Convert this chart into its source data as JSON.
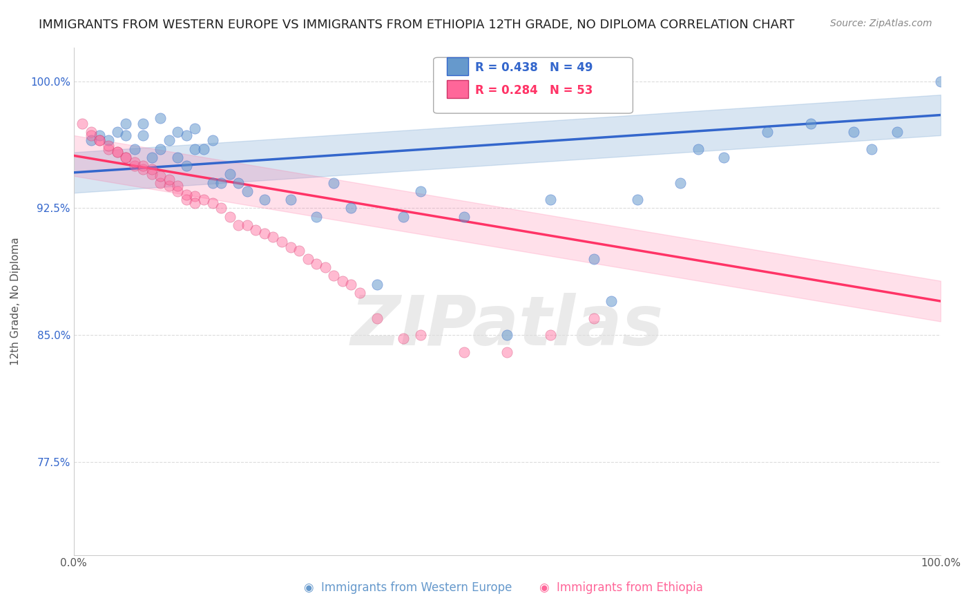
{
  "title": "IMMIGRANTS FROM WESTERN EUROPE VS IMMIGRANTS FROM ETHIOPIA 12TH GRADE, NO DIPLOMA CORRELATION CHART",
  "source": "Source: ZipAtlas.com",
  "xlabel": "",
  "ylabel": "12th Grade, No Diploma",
  "xlim": [
    0.0,
    1.0
  ],
  "ylim": [
    0.72,
    1.02
  ],
  "x_tick_labels": [
    "0.0%",
    "100.0%"
  ],
  "y_tick_labels": [
    "77.5%",
    "85.0%",
    "92.5%",
    "100.0%"
  ],
  "y_tick_positions": [
    0.775,
    0.85,
    0.925,
    1.0
  ],
  "grid_color": "#cccccc",
  "background_color": "#ffffff",
  "watermark": "ZIPatlas",
  "legend_r_blue": "R = 0.438",
  "legend_n_blue": "N = 49",
  "legend_r_pink": "R = 0.284",
  "legend_n_pink": "N = 53",
  "blue_scatter_x": [
    0.02,
    0.05,
    0.06,
    0.07,
    0.08,
    0.09,
    0.1,
    0.11,
    0.12,
    0.13,
    0.14,
    0.15,
    0.16,
    0.17,
    0.18,
    0.19,
    0.2,
    0.22,
    0.25,
    0.28,
    0.3,
    0.32,
    0.35,
    0.38,
    0.4,
    0.45,
    0.5,
    0.55,
    0.6,
    0.62,
    0.65,
    0.7,
    0.72,
    0.75,
    0.8,
    0.85,
    0.9,
    0.92,
    0.95,
    1.0,
    0.03,
    0.04,
    0.13,
    0.14,
    0.1,
    0.08,
    0.12,
    0.16,
    0.06
  ],
  "blue_scatter_y": [
    0.965,
    0.97,
    0.975,
    0.96,
    0.968,
    0.955,
    0.96,
    0.965,
    0.955,
    0.95,
    0.96,
    0.96,
    0.94,
    0.94,
    0.945,
    0.94,
    0.935,
    0.93,
    0.93,
    0.92,
    0.94,
    0.925,
    0.88,
    0.92,
    0.935,
    0.92,
    0.85,
    0.93,
    0.895,
    0.87,
    0.93,
    0.94,
    0.96,
    0.955,
    0.97,
    0.975,
    0.97,
    0.96,
    0.97,
    1.0,
    0.968,
    0.965,
    0.968,
    0.972,
    0.978,
    0.975,
    0.97,
    0.965,
    0.968
  ],
  "pink_scatter_x": [
    0.01,
    0.02,
    0.03,
    0.04,
    0.05,
    0.06,
    0.07,
    0.08,
    0.09,
    0.1,
    0.11,
    0.12,
    0.13,
    0.14,
    0.15,
    0.16,
    0.17,
    0.18,
    0.19,
    0.2,
    0.21,
    0.22,
    0.23,
    0.24,
    0.25,
    0.26,
    0.27,
    0.28,
    0.29,
    0.3,
    0.31,
    0.32,
    0.33,
    0.35,
    0.38,
    0.4,
    0.45,
    0.5,
    0.55,
    0.6,
    0.02,
    0.03,
    0.04,
    0.05,
    0.06,
    0.07,
    0.08,
    0.09,
    0.1,
    0.11,
    0.12,
    0.13,
    0.14
  ],
  "pink_scatter_y": [
    0.975,
    0.97,
    0.965,
    0.96,
    0.958,
    0.955,
    0.95,
    0.948,
    0.945,
    0.94,
    0.938,
    0.935,
    0.93,
    0.932,
    0.93,
    0.928,
    0.925,
    0.92,
    0.915,
    0.915,
    0.912,
    0.91,
    0.908,
    0.905,
    0.902,
    0.9,
    0.895,
    0.892,
    0.89,
    0.885,
    0.882,
    0.88,
    0.875,
    0.86,
    0.848,
    0.85,
    0.84,
    0.84,
    0.85,
    0.86,
    0.968,
    0.965,
    0.962,
    0.958,
    0.955,
    0.952,
    0.95,
    0.948,
    0.944,
    0.942,
    0.938,
    0.933,
    0.928
  ],
  "blue_line_x": [
    0.0,
    1.0
  ],
  "blue_line_y": [
    0.946,
    0.98
  ],
  "pink_line_x": [
    0.0,
    1.0
  ],
  "pink_line_y": [
    0.956,
    0.87
  ],
  "blue_color": "#6699cc",
  "pink_color": "#ff6699",
  "blue_line_color": "#3366cc",
  "pink_line_color": "#ff3366",
  "blue_fill_color": "#aabbdd",
  "pink_fill_color": "#ffaabb"
}
